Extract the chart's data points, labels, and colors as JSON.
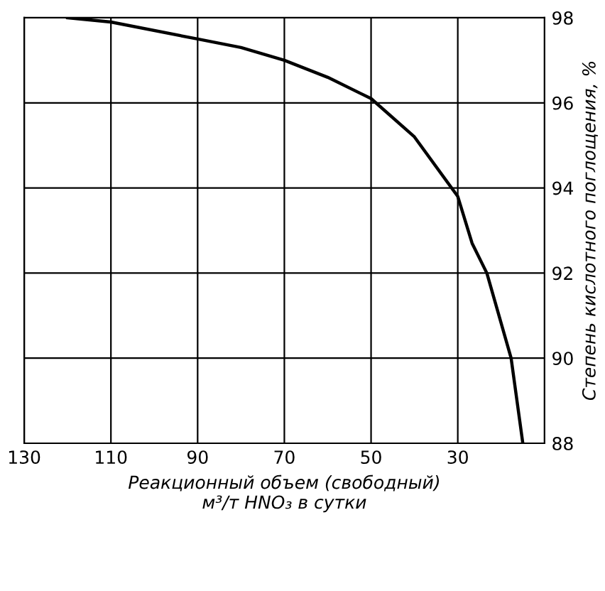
{
  "chart_data": {
    "type": "line",
    "xlabel": "Реакционный объем (свободный)\nм³/т HNO₃ в сутки",
    "ylabel": "Степень кислотного поглощения, %",
    "x": [
      120,
      110,
      90,
      80,
      70,
      60,
      50,
      40,
      30,
      26.7,
      23.3,
      17.7,
      15
    ],
    "series": [
      {
        "color": "#000000",
        "values": [
          98,
          97.9,
          97.5,
          97.3,
          97,
          96.6,
          96.1,
          95.2,
          93.8,
          92.7,
          92,
          90,
          88
        ]
      }
    ],
    "xlim": [
      130,
      10
    ],
    "xticks": [
      130,
      110,
      90,
      70,
      50,
      30
    ],
    "ylim": [
      88,
      98
    ],
    "yticks": [
      88,
      90,
      92,
      94,
      96,
      98
    ],
    "grid": true,
    "marker": "none",
    "line_style": "solid"
  }
}
